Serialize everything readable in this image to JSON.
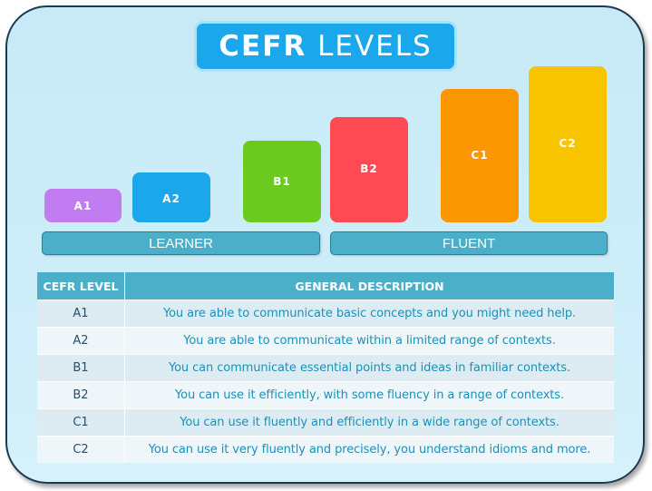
{
  "title": {
    "bold": "CEFR",
    "thin": "LEVELS"
  },
  "levels": [
    "A1",
    "A2",
    "B1",
    "B2",
    "C1",
    "C2"
  ],
  "groups": {
    "learner": "LEARNER",
    "fluent": "FLUENT"
  },
  "table": {
    "headers": [
      "CEFR LEVEL",
      "GENERAL DESCRIPTION"
    ],
    "rows": [
      {
        "level": "A1",
        "description": "You are able to communicate basic concepts and you might need help."
      },
      {
        "level": "A2",
        "description": "You are able to communicate within a limited range of contexts."
      },
      {
        "level": "B1",
        "description": "You can communicate essential points and ideas in familiar contexts."
      },
      {
        "level": "B2",
        "description": "You can use it efficiently, with some fluency in a range of contexts."
      },
      {
        "level": "C1",
        "description": "You can use it fluently and efficiently in a wide range of contexts."
      },
      {
        "level": "C2",
        "description": "You can use it very fluently and precisely, you understand idioms and more."
      }
    ]
  },
  "colors": {
    "A1": "#c27cf2",
    "A2": "#1aa7ec",
    "B1": "#6cc91e",
    "B2": "#ff4a53",
    "C1": "#f99600",
    "C2": "#f8c400",
    "bar": "#4bafc9",
    "text": "#1d90b7"
  }
}
